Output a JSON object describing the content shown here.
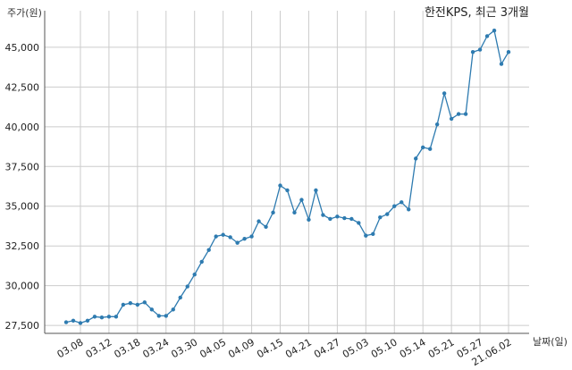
{
  "chart_data": {
    "type": "line",
    "title": "한전KPS, 최근 3개월",
    "ylabel": "주가(원)",
    "xlabel": "날짜(일)",
    "ylim": [
      27000,
      47300
    ],
    "yticks": [
      27500,
      30000,
      32500,
      35000,
      37500,
      40000,
      42500,
      45000
    ],
    "ytick_labels": [
      "27,500",
      "30,000",
      "32,500",
      "35,000",
      "37,500",
      "40,000",
      "42,500",
      "45,000"
    ],
    "xtick_labels": [
      "03.08",
      "03.12",
      "03.18",
      "03.24",
      "03.30",
      "04.05",
      "04.09",
      "04.15",
      "04.21",
      "04.27",
      "05.03",
      "05.10",
      "05.14",
      "05.21",
      "05.27",
      "21.06.02"
    ],
    "xtick_index": [
      2,
      6,
      10,
      14,
      18,
      22,
      26,
      30,
      34,
      38,
      42,
      46,
      50,
      54,
      58,
      62
    ],
    "grid": true,
    "line_color": "#2e7bb0",
    "series": [
      {
        "values": [
          27700,
          27800,
          27650,
          27800,
          28050,
          28000,
          28050,
          28050,
          28800,
          28900,
          28800,
          28950,
          28500,
          28100,
          28100,
          28500,
          29250,
          29950,
          30700,
          31500,
          32250,
          33100,
          33200,
          33050,
          32700,
          32950,
          33100,
          34050,
          33700,
          34600,
          36300,
          36000,
          34600,
          35400,
          34150,
          36000,
          34450,
          34200,
          34350,
          34250,
          34200,
          33950,
          33150,
          33250,
          34300,
          34500,
          35000,
          35250,
          34800,
          38000,
          38700,
          38600,
          40150,
          42100,
          40500,
          40800,
          40800,
          44700,
          44850,
          45700,
          46050,
          43950,
          44700
        ]
      }
    ]
  }
}
